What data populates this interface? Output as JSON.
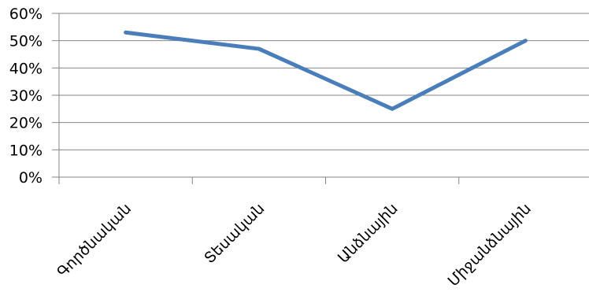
{
  "chart_data": {
    "type": "line",
    "categories": [
      "Գործնական",
      "Տեսական",
      "Անձնային",
      "Միջանձնային"
    ],
    "series": [
      {
        "values": [
          53,
          47,
          25,
          50
        ],
        "color": "#4a7ebb"
      }
    ],
    "ylim": [
      0,
      60
    ],
    "yticks": [
      "0%",
      "10%",
      "20%",
      "30%",
      "40%",
      "50%",
      "60%"
    ],
    "grid": true,
    "legend": "none"
  }
}
